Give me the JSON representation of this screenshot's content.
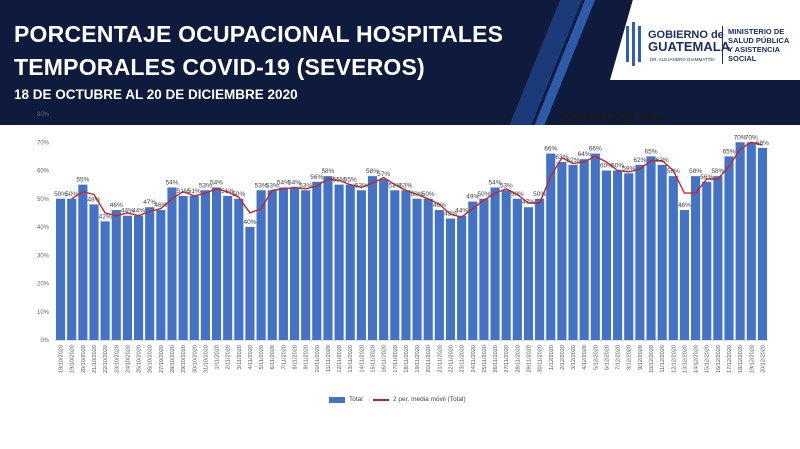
{
  "header": {
    "title_line1": "PORCENTAJE OCUPACIONAL HOSPITALES",
    "title_line2": "TEMPORALES  COVID-19 (SEVEROS)",
    "subtitle": "18 DE OCTUBRE AL 20 DE DICIEMBRE 2020"
  },
  "logo": {
    "name_top": "GOBIERNO de",
    "name_main": "GUATEMALA",
    "name_small": "DR. ALEJANDRO GIAMMATTEI",
    "ministry_line1": "MINISTERIO DE",
    "ministry_line2": "SALUD PÚBLICA",
    "ministry_line3": "Y ASISTENCIA",
    "ministry_line4": "SOCIAL"
  },
  "annotation": {
    "occupancy": "OCUPACIÓN 68%"
  },
  "colors": {
    "header_bg": "#0f1b3c",
    "bar": "#4472c4",
    "line": "#c0272d"
  },
  "chart_data": {
    "type": "bar",
    "categories": [
      "18/10/2020",
      "19/10/2020",
      "20/10/2020",
      "21/10/2020",
      "22/10/2020",
      "23/10/2020",
      "24/10/2020",
      "25/10/2020",
      "26/10/2020",
      "27/10/2020",
      "28/10/2020",
      "29/10/2020",
      "30/10/2020",
      "31/10/2020",
      "1/11/2020",
      "2/11/2020",
      "3/11/2020",
      "4/11/2020",
      "5/11/2020",
      "6/11/2020",
      "7/11/2020",
      "8/11/2020",
      "9/11/2020",
      "10/11/2020",
      "11/11/2020",
      "12/11/2020",
      "13/11/2020",
      "14/11/2020",
      "15/11/2020",
      "16/11/2020",
      "17/11/2020",
      "18/11/2020",
      "19/11/2020",
      "20/11/2020",
      "21/11/2020",
      "22/11/2020",
      "23/11/2020",
      "24/11/2020",
      "25/11/2020",
      "26/11/2020",
      "27/11/2020",
      "28/11/2020",
      "29/11/2020",
      "30/11/2020",
      "1/12/2020",
      "2/12/2020",
      "3/12/2020",
      "4/12/2020",
      "5/12/2020",
      "6/12/2020",
      "7/12/2020",
      "8/12/2020",
      "9/12/2020",
      "10/12/2020",
      "11/12/2020",
      "12/12/2020",
      "13/12/2020",
      "14/12/2020",
      "15/12/2020",
      "16/12/2020",
      "17/12/2020",
      "18/12/2020",
      "19/12/2020",
      "20/12/2020"
    ],
    "series": [
      {
        "name": "Total",
        "kind": "bar",
        "values": [
          50,
          50,
          55,
          48,
          42,
          46,
          44,
          44,
          47,
          46,
          54,
          51,
          51,
          53,
          54,
          51,
          50,
          40,
          53,
          53,
          54,
          54,
          53,
          56,
          58,
          55,
          55,
          53,
          58,
          57,
          53,
          53,
          50,
          50,
          46,
          43,
          44,
          49,
          50,
          54,
          53,
          50,
          47,
          50,
          66,
          63,
          62,
          64,
          66,
          60,
          60,
          59,
          62,
          65,
          62,
          58,
          46,
          58,
          56,
          58,
          65,
          70,
          70,
          68
        ]
      },
      {
        "name": "2 per. media móvil (Total)",
        "kind": "line",
        "values": [
          null,
          50,
          52.5,
          51.5,
          45,
          44,
          45,
          44,
          45.5,
          46.5,
          50,
          52.5,
          51,
          52,
          53.5,
          52.5,
          50.5,
          45,
          46.5,
          53,
          53.5,
          54,
          53.5,
          54.5,
          57,
          56.5,
          55,
          54,
          55.5,
          57.5,
          55,
          53,
          51.5,
          50,
          48,
          44.5,
          43.5,
          46.5,
          49.5,
          52,
          53.5,
          51.5,
          48.5,
          48.5,
          58,
          64.5,
          62.5,
          63,
          65,
          63,
          60,
          59.5,
          60.5,
          63.5,
          63.5,
          60,
          52,
          52,
          57,
          57,
          61.5,
          67.5,
          70,
          69
        ]
      }
    ],
    "data_labels": [
      "50%",
      "50%",
      "55%",
      "48%",
      "42%",
      "46%",
      "44%",
      "44%",
      "47%",
      "46%",
      "54%",
      "51%",
      "51%",
      "53%",
      "54%",
      "51%",
      "50%",
      "40%",
      "53%",
      "53%",
      "54%",
      "54%",
      "53%",
      "56%",
      "58%",
      "55%",
      "55%",
      "53%",
      "58%",
      "57%",
      "53%",
      "53%",
      "50%",
      "50%",
      "46%",
      "43%",
      "44%",
      "49%",
      "50%",
      "54%",
      "53%",
      "50%",
      "47%",
      "50%",
      "66%",
      "63%",
      "62%",
      "64%",
      "66%",
      "60%",
      "60%",
      "59%",
      "62%",
      "65%",
      "62%",
      "58%",
      "46%",
      "58%",
      "56%",
      "58%",
      "65%",
      "70%",
      "70%",
      "68%"
    ],
    "y_ticks": [
      "0%",
      "10%",
      "20%",
      "30%",
      "40%",
      "50%",
      "60%",
      "70%",
      "80%"
    ],
    "ylim": [
      0,
      80
    ],
    "grid": false,
    "legend": {
      "placement": "bottom",
      "entries": [
        "Total",
        "2 per. media móvil (Total)"
      ]
    }
  }
}
